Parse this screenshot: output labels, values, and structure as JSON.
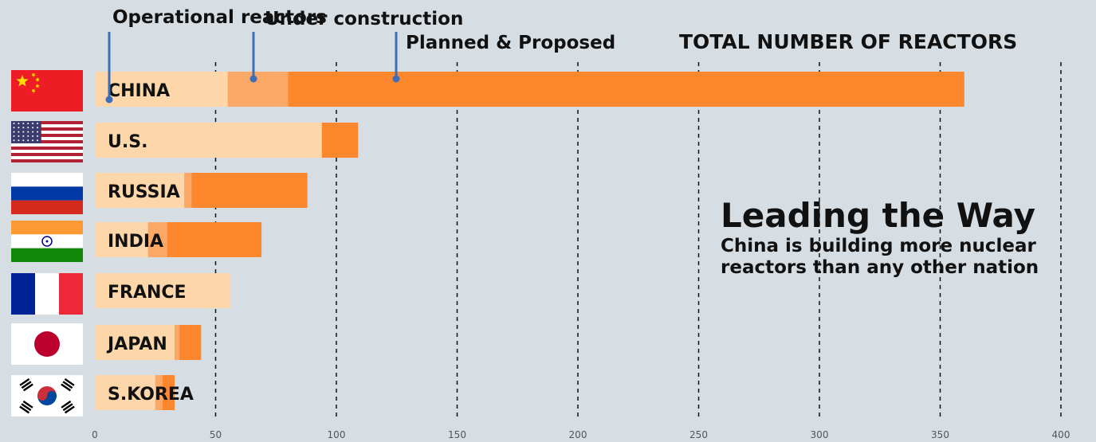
{
  "chart_data": {
    "type": "bar",
    "stacked": true,
    "orientation": "horizontal",
    "title": "TOTAL NUMBER OF REACTORS",
    "subtitle": "Leading the Way",
    "annotation": "China is building more nuclear reactors than any other nation",
    "categories": [
      "CHINA",
      "U.S.",
      "RUSSIA",
      "INDIA",
      "FRANCE",
      "JAPAN",
      "S.KOREA"
    ],
    "series": [
      {
        "name": "Operational reactors",
        "values": [
          55,
          94,
          37,
          22,
          56,
          33,
          25
        ],
        "color": "#fdd7a9"
      },
      {
        "name": "Under construction",
        "values": [
          25,
          0,
          3,
          8,
          0,
          2,
          3
        ],
        "color": "#fba866"
      },
      {
        "name": "Planned & Proposed",
        "values": [
          280,
          15,
          48,
          39,
          0,
          9,
          5
        ],
        "color": "#fd872d"
      }
    ],
    "xticks": [
      0,
      50,
      100,
      150,
      200,
      250,
      300,
      350,
      400
    ],
    "xlim": [
      0,
      400
    ],
    "grid": "vertical dashed",
    "legend": "top-left, callouts"
  },
  "flags": [
    "china",
    "usa",
    "russia",
    "india",
    "france",
    "japan",
    "south-korea"
  ],
  "colors": {
    "background": "#d6dde3",
    "legend_line": "#3d6fb8"
  }
}
